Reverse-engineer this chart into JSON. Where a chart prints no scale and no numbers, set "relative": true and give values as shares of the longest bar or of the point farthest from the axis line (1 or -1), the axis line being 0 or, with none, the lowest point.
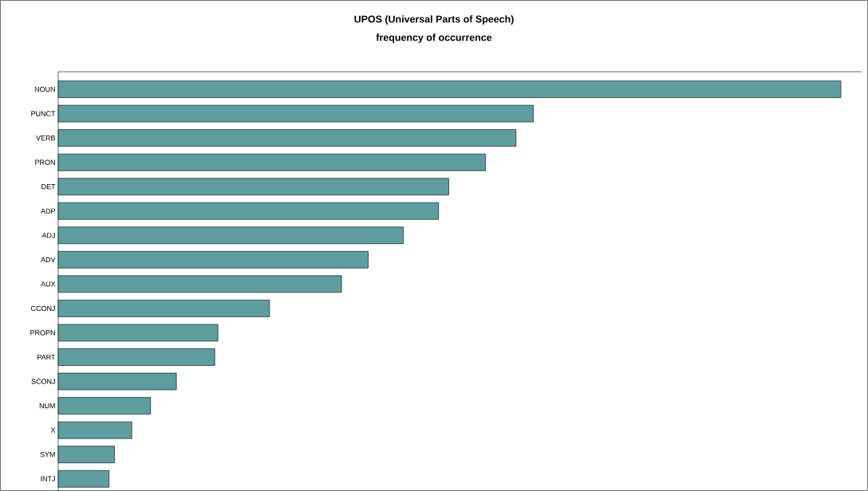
{
  "chart_data": {
    "type": "bar",
    "orientation": "horizontal",
    "relative": true,
    "title": "UPOS (Universal Parts of Speech)",
    "subtitle": "frequency of occurrence",
    "categories": [
      "NOUN",
      "PUNCT",
      "VERB",
      "PRON",
      "DET",
      "ADP",
      "ADJ",
      "ADV",
      "AUX",
      "CCONJ",
      "PROPN",
      "PART",
      "SCONJ",
      "NUM",
      "X",
      "SYM",
      "INTJ"
    ],
    "values": [
      1,
      0.607,
      0.585,
      0.546,
      0.499,
      0.486,
      0.441,
      0.396,
      0.362,
      0.27,
      0.204,
      0.2,
      0.151,
      0.118,
      0.094,
      0.072,
      0.065
    ],
    "color": "#5f9ea0"
  }
}
